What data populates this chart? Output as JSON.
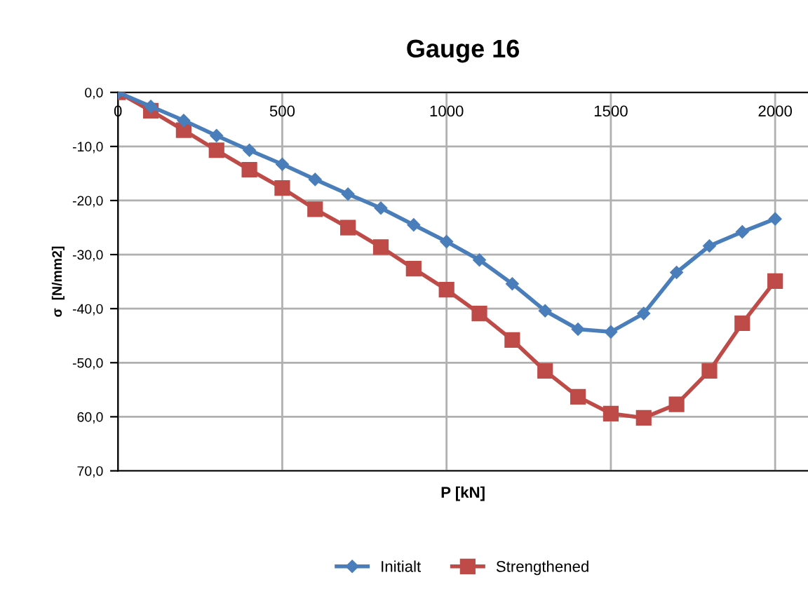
{
  "chart_data": {
    "type": "line",
    "title": "Gauge 16",
    "xlabel": "P [kN]",
    "ylabel": "σ  [N/mm2]",
    "x": [
      0,
      100,
      200,
      300,
      400,
      500,
      600,
      700,
      800,
      900,
      1000,
      1100,
      1200,
      1300,
      1400,
      1500,
      1600,
      1700,
      1800,
      1900,
      2000
    ],
    "series": [
      {
        "name": "Initialt",
        "color": "#4a7ebb",
        "marker": "diamond",
        "values": [
          0,
          -2.6,
          -5.2,
          -8.0,
          -10.7,
          -13.3,
          -16.1,
          -18.8,
          -21.4,
          -24.5,
          -27.6,
          -31.0,
          -35.4,
          -40.4,
          -43.8,
          -44.3,
          -40.9,
          -33.3,
          -28.4,
          -25.8,
          -23.4
        ]
      },
      {
        "name": "Strengthened",
        "color": "#be4b48",
        "marker": "square",
        "values": [
          0,
          -3.4,
          -7.0,
          -10.7,
          -14.3,
          -17.7,
          -21.6,
          -25.0,
          -28.6,
          -32.6,
          -36.5,
          -40.9,
          -45.8,
          -51.5,
          -56.3,
          -59.4,
          -60.2,
          -57.7,
          -51.5,
          -42.7,
          -34.9
        ]
      }
    ],
    "xlim": [
      0,
      2100
    ],
    "xticks": [
      0,
      500,
      1000,
      1500,
      2000
    ],
    "ylim": [
      -70,
      0
    ],
    "yticks": [
      {
        "value": 0,
        "label": "0,0"
      },
      {
        "value": -10,
        "label": "-10,0"
      },
      {
        "value": -20,
        "label": "-20,0"
      },
      {
        "value": -30,
        "label": "-30,0"
      },
      {
        "value": -40,
        "label": "-40,0"
      },
      {
        "value": -50,
        "label": "-50,0"
      },
      {
        "value": -60,
        "label": "60,0"
      },
      {
        "value": -70,
        "label": "70,0"
      }
    ],
    "grid": true,
    "legend": "bottom",
    "line_style": "solid"
  }
}
